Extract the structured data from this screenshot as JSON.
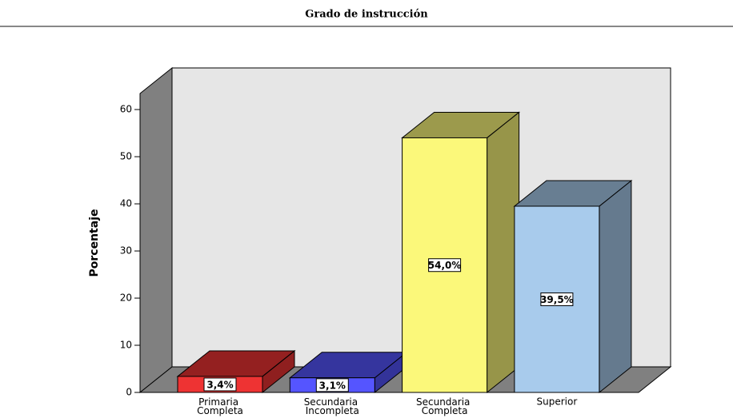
{
  "chart_data": {
    "type": "bar3d",
    "title": "Grado de instrucción",
    "y_label": "Porcentaje",
    "categories": [
      "Primaria Completa",
      "Secundaria Incompleta",
      "Secundaria Completa",
      "Superior"
    ],
    "values": [
      3.4,
      3.1,
      54.0,
      39.5
    ],
    "value_labels": [
      "3,4%",
      "3,1%",
      "54,0%",
      "39,5%"
    ],
    "colors": [
      "#ee3333",
      "#5555ff",
      "#fbf87a",
      "#a8cbec"
    ],
    "ylim": [
      0,
      63.4
    ],
    "yticks": [
      0,
      10,
      20,
      30,
      40,
      50,
      60
    ],
    "grid": false
  }
}
